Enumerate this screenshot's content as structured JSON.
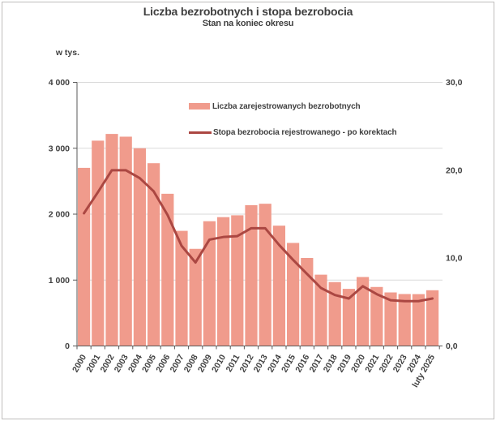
{
  "title": "Liczba bezrobotnych i stopa bezrobocia",
  "subtitle": "Stan na koniec okresu",
  "unit_label": "w tys.",
  "colors": {
    "bar": "#F09B8C",
    "line": "#AB4742",
    "grid": "#D9D9D9",
    "axis": "#595959",
    "text": "#404040",
    "frame": "#BFBDBC"
  },
  "legend": [
    {
      "label": "Liczba zarejestrowanych bezrobotnych",
      "marker": "bar"
    },
    {
      "label": "Stopa bezrobocia rejestrowanego - po korektach",
      "marker": "line"
    }
  ],
  "chart_data": {
    "type": "bar+line",
    "title": "Liczba bezrobotnych i stopa bezrobocia",
    "subtitle": "Stan na koniec okresu",
    "categories": [
      "2000",
      "2001",
      "2002",
      "2003",
      "2004",
      "2005",
      "2006",
      "2007",
      "2008",
      "2009",
      "2010",
      "2011",
      "2012",
      "2013",
      "2014",
      "2015",
      "2016",
      "2017",
      "2018",
      "2019",
      "2020",
      "2021",
      "2022",
      "2023",
      "2024",
      "luty 2025"
    ],
    "series": [
      {
        "name": "Liczba zarejestrowanych bezrobotnych",
        "type": "bar",
        "axis": "left",
        "unit": "tys.",
        "values": [
          2702.6,
          3115.1,
          3217.0,
          3175.7,
          2999.6,
          2773.0,
          2309.4,
          1746.6,
          1473.8,
          1892.7,
          1954.7,
          1982.7,
          2136.8,
          2157.9,
          1825.2,
          1563.3,
          1335.2,
          1081.7,
          968.9,
          866.4,
          1046.4,
          895.2,
          812.3,
          788.2,
          786.6,
          845.3
        ]
      },
      {
        "name": "Stopa bezrobocia rejestrowanego - po korektach",
        "type": "line",
        "axis": "right",
        "unit": "%",
        "values": [
          15.1,
          17.5,
          20.0,
          20.0,
          19.1,
          17.6,
          14.9,
          11.4,
          9.5,
          12.1,
          12.4,
          12.5,
          13.4,
          13.4,
          11.5,
          9.8,
          8.2,
          6.6,
          5.8,
          5.4,
          6.8,
          5.9,
          5.2,
          5.1,
          5.1,
          5.4
        ]
      }
    ],
    "left_axis": {
      "label": "w tys.",
      "min": 0,
      "max": 4000,
      "ticks": [
        {
          "value": 0,
          "label": "0"
        },
        {
          "value": 1000,
          "label": "1 000"
        },
        {
          "value": 2000,
          "label": "2 000"
        },
        {
          "value": 3000,
          "label": "3 000"
        },
        {
          "value": 4000,
          "label": "4 000"
        }
      ]
    },
    "right_axis": {
      "min": 0,
      "max": 30,
      "ticks": [
        {
          "value": 0,
          "label": "0,0"
        },
        {
          "value": 10,
          "label": "10,0"
        },
        {
          "value": 20,
          "label": "20,0"
        },
        {
          "value": 30,
          "label": "30,0"
        }
      ]
    },
    "grid": "horizontal-at-left-ticks",
    "legend_position": "inside-top-center"
  }
}
